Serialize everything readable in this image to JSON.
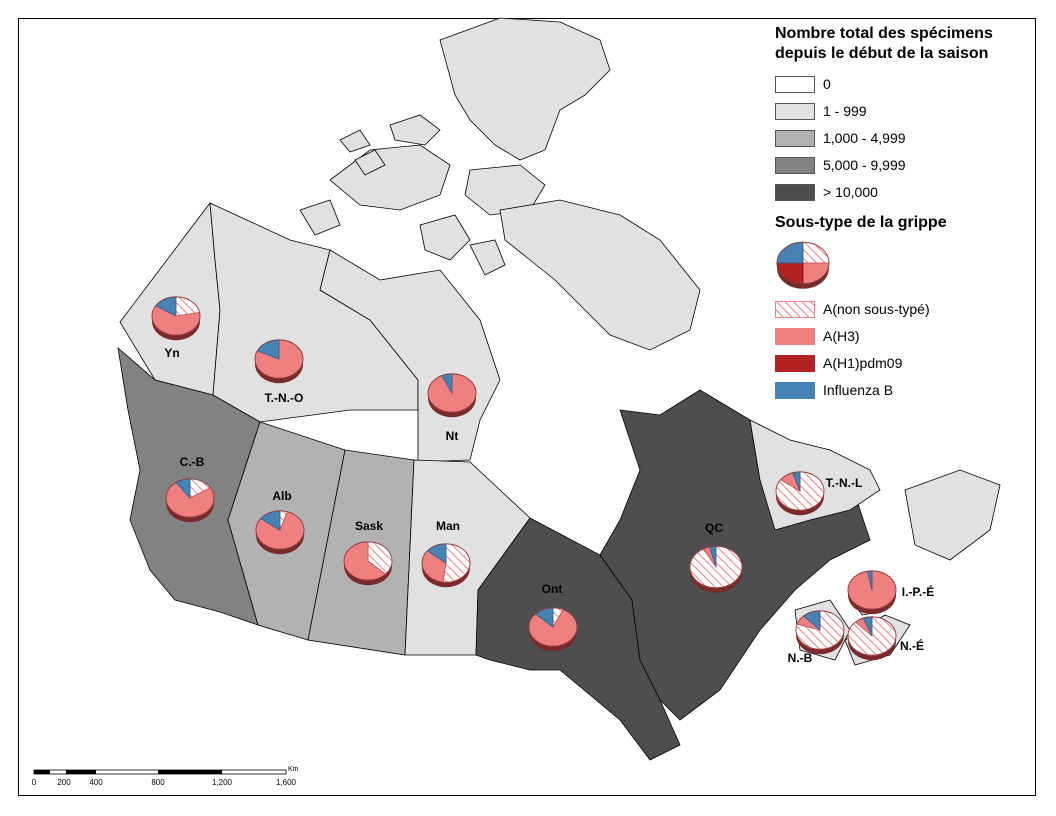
{
  "legend": {
    "totals_title_line1": "Nombre total des spécimens",
    "totals_title_line2": "depuis le début de la saison",
    "classes": [
      {
        "label": "0",
        "color": "#ffffff"
      },
      {
        "label": "1 - 999",
        "color": "#e1e1e1"
      },
      {
        "label": "1,000 - 4,999",
        "color": "#b2b2b2"
      },
      {
        "label": "5,000 - 9,999",
        "color": "#828282"
      },
      {
        "label": "> 10,000",
        "color": "#4e4e4e"
      }
    ],
    "subtype_title": "Sous-type de la grippe",
    "subtypes": [
      {
        "label": "A(non sous-typé)",
        "color": "#f08080",
        "pattern": "hatch"
      },
      {
        "label": "A(H3)",
        "color": "#f08080"
      },
      {
        "label": "A(H1)pdm09",
        "color": "#b22222"
      },
      {
        "label": "Influenza B",
        "color": "#4682b4"
      }
    ]
  },
  "map": {
    "provinces": [
      {
        "label": "Yn",
        "class": 1,
        "shares": [
          0.22,
          0.62,
          0.0,
          0.16
        ]
      },
      {
        "label": "T.-N.-O",
        "class": 1,
        "shares": [
          0.0,
          0.82,
          0.0,
          0.18
        ]
      },
      {
        "label": "Nt",
        "class": 1,
        "shares": [
          0.0,
          0.93,
          0.0,
          0.07
        ]
      },
      {
        "label": "C.-B",
        "class": 3,
        "shares": [
          0.16,
          0.74,
          0.0,
          0.1
        ]
      },
      {
        "label": "Alb",
        "class": 2,
        "shares": [
          0.05,
          0.8,
          0.0,
          0.15
        ]
      },
      {
        "label": "Sask",
        "class": 2,
        "shares": [
          0.37,
          0.63,
          0.0,
          0.0
        ]
      },
      {
        "label": "Man",
        "class": 1,
        "shares": [
          0.52,
          0.34,
          0.0,
          0.14
        ]
      },
      {
        "label": "Ont",
        "class": 4,
        "shares": [
          0.07,
          0.8,
          0.0,
          0.13
        ]
      },
      {
        "label": "QC",
        "class": 4,
        "shares": [
          0.92,
          0.04,
          0.0,
          0.04
        ]
      },
      {
        "label": "T.-N.-L",
        "class": 1,
        "shares": [
          0.85,
          0.1,
          0.0,
          0.05
        ]
      },
      {
        "label": "I.-P.-É",
        "class": 1,
        "shares": [
          0.0,
          0.97,
          0.0,
          0.03
        ]
      },
      {
        "label": "N.-B",
        "class": 1,
        "shares": [
          0.8,
          0.08,
          0.0,
          0.12
        ]
      },
      {
        "label": "N.-É",
        "class": 1,
        "shares": [
          0.88,
          0.06,
          0.0,
          0.06
        ]
      }
    ],
    "legend_pie_shares": [
      0.25,
      0.25,
      0.25,
      0.25
    ]
  },
  "scalebar": {
    "unit": "Km",
    "ticks": [
      "0",
      "200",
      "400",
      "800",
      "1,200",
      "1,600"
    ]
  }
}
